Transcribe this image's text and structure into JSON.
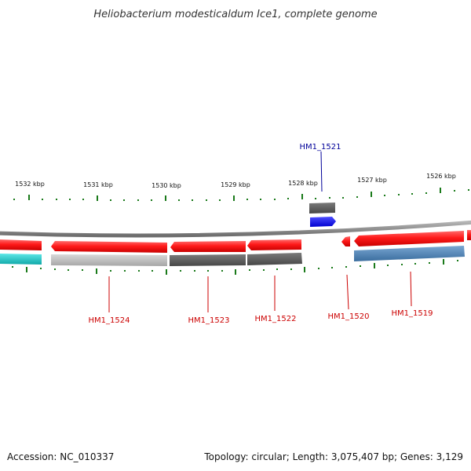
{
  "title": "Heliobacterium modesticaldum Ice1, complete genome",
  "footer": {
    "accession": "Accession: NC_010337",
    "topology": "Topology: circular; Length: 3,075,407 bp; Genes: 3,129"
  },
  "colors": {
    "backbone": "#8a8a8a",
    "tick": "#1a7a1a",
    "forward_gene": "#ff2020",
    "label_red": "#cc0000",
    "label_blue": "#000099",
    "grey_light": "#bcbcbc",
    "grey_dark": "#5a5a5a",
    "steel_blue": "#4f86b8",
    "cyan": "#19c9c9",
    "blue": "#1a1aff"
  },
  "ruler": {
    "labels": [
      "1532 kbp",
      "1531 kbp",
      "1530 kbp",
      "1529 kbp",
      "1528 kbp",
      "1527 kbp",
      "1526 kbp"
    ]
  },
  "genes": [
    {
      "name": "HM1_1524",
      "color": "#cc0000"
    },
    {
      "name": "HM1_1523",
      "color": "#cc0000"
    },
    {
      "name": "HM1_1522",
      "color": "#cc0000"
    },
    {
      "name": "HM1_1521",
      "color": "#000099"
    },
    {
      "name": "HM1_1520",
      "color": "#cc0000"
    },
    {
      "name": "HM1_1519",
      "color": "#cc0000"
    }
  ]
}
